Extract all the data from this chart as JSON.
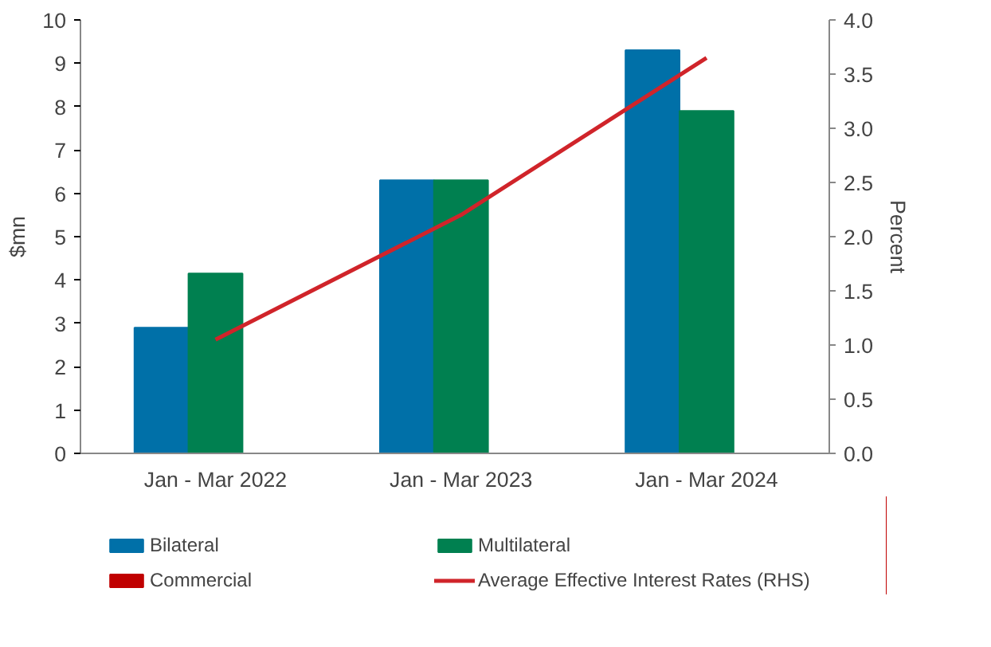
{
  "chart_data": {
    "type": "bar",
    "categories": [
      "Jan - Mar 2022",
      "Jan - Mar 2023",
      "Jan - Mar 2024"
    ],
    "ylabel": "$mn",
    "y2label": "Percent",
    "ylim": [
      0,
      10
    ],
    "yticks": [
      0,
      1,
      2,
      3,
      4,
      5,
      6,
      7,
      8,
      9,
      10
    ],
    "y2lim": [
      0,
      4
    ],
    "y2ticks": [
      {
        "value": 0,
        "label": "0.0"
      },
      {
        "value": 0.5,
        "label": "0.5"
      },
      {
        "value": 1,
        "label": "1.0"
      },
      {
        "value": 1.5,
        "label": "1.5"
      },
      {
        "value": 2,
        "label": "2.0"
      },
      {
        "value": 2.5,
        "label": "2.5"
      },
      {
        "value": 3,
        "label": "3.0"
      },
      {
        "value": 3.5,
        "label": "3.5"
      },
      {
        "value": 4,
        "label": "4.0"
      }
    ],
    "grid": false,
    "legend": "bottom",
    "series": [
      {
        "name": "Bilateral",
        "color": "#0070a8",
        "values": [
          2.9,
          6.3,
          9.3
        ]
      },
      {
        "name": "Multilateral",
        "color": "#008050",
        "values": [
          4.15,
          6.3,
          7.9
        ]
      },
      {
        "name": "Commercial",
        "color": "#c00000",
        "values": [
          0,
          0,
          0
        ]
      },
      {
        "name": "Average Effective Interest Rates (RHS)",
        "type": "line",
        "axis": "y2",
        "color": "#d0242a",
        "values": [
          1.05,
          2.2,
          3.65
        ]
      }
    ]
  }
}
